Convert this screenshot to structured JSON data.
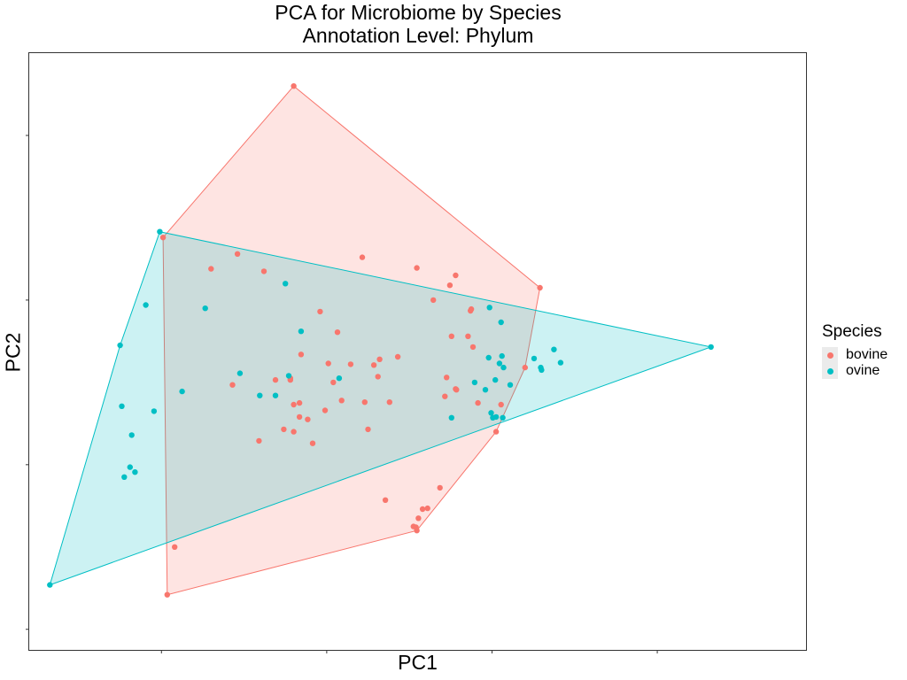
{
  "chart_data": {
    "type": "scatter",
    "title": "PCA for Microbiome by Species",
    "subtitle": "Annotation Level: Phylum",
    "xlabel": "PC1",
    "ylabel": "PC2",
    "xlim": [
      -3.6,
      5.8
    ],
    "ylim": [
      -3.25,
      4.0
    ],
    "grid": false,
    "legend_position": "right",
    "legend_title": "Species",
    "hulls": true,
    "series": [
      {
        "name": "bovine",
        "color": "#F8766D",
        "points": [
          [
            -0.4,
            3.6
          ],
          [
            -1.98,
            1.76
          ],
          [
            -1.08,
            1.56
          ],
          [
            -1.4,
            1.38
          ],
          [
            -0.76,
            1.35
          ],
          [
            0.43,
            1.52
          ],
          [
            1.09,
            1.39
          ],
          [
            1.56,
            1.3
          ],
          [
            1.49,
            1.18
          ],
          [
            2.58,
            1.15
          ],
          [
            1.29,
            1.0
          ],
          [
            1.75,
            0.89
          ],
          [
            1.74,
            0.87
          ],
          [
            -0.08,
            0.86
          ],
          [
            0.13,
            0.61
          ],
          [
            1.51,
            0.56
          ],
          [
            1.77,
            0.43
          ],
          [
            1.71,
            0.56
          ],
          [
            0.64,
            0.28
          ],
          [
            0.86,
            0.31
          ],
          [
            0.29,
            0.22
          ],
          [
            -0.31,
            0.34
          ],
          [
            0.02,
            0.23
          ],
          [
            0.57,
            0.21
          ],
          [
            -0.62,
            0.03
          ],
          [
            -1.14,
            -0.03
          ],
          [
            -0.44,
            0.05
          ],
          [
            -0.44,
            0.03
          ],
          [
            0.08,
            0.0
          ],
          [
            0.62,
            0.07
          ],
          [
            1.45,
            0.06
          ],
          [
            1.56,
            -0.08
          ],
          [
            1.57,
            -0.09
          ],
          [
            2.4,
            0.18
          ],
          [
            1.43,
            -0.17
          ],
          [
            0.18,
            -0.22
          ],
          [
            0.46,
            -0.24
          ],
          [
            0.76,
            -0.24
          ],
          [
            -0.33,
            -0.25
          ],
          [
            -0.4,
            -0.27
          ],
          [
            -0.33,
            -0.42
          ],
          [
            -0.02,
            -0.34
          ],
          [
            -0.23,
            -0.45
          ],
          [
            -0.52,
            -0.57
          ],
          [
            -0.4,
            -0.6
          ],
          [
            0.5,
            -0.57
          ],
          [
            1.83,
            -0.25
          ],
          [
            2.11,
            -0.27
          ],
          [
            2.05,
            -0.6
          ],
          [
            -0.17,
            -0.74
          ],
          [
            -0.82,
            -0.71
          ],
          [
            1.37,
            -1.28
          ],
          [
            0.71,
            -1.43
          ],
          [
            1.22,
            -1.53
          ],
          [
            1.16,
            -1.54
          ],
          [
            1.11,
            -1.65
          ],
          [
            1.05,
            -1.75
          ],
          [
            1.09,
            -1.8
          ],
          [
            1.08,
            -1.76
          ],
          [
            -1.84,
            -2.0
          ],
          [
            -1.93,
            -2.58
          ]
        ]
      },
      {
        "name": "ovine",
        "color": "#00BFC4",
        "points": [
          [
            -2.02,
            1.83
          ],
          [
            -0.5,
            1.2
          ],
          [
            -2.19,
            0.94
          ],
          [
            -1.47,
            0.9
          ],
          [
            1.97,
            0.91
          ],
          [
            2.11,
            0.73
          ],
          [
            -0.31,
            0.62
          ],
          [
            -2.5,
            0.45
          ],
          [
            0.15,
            0.05
          ],
          [
            -1.05,
            0.11
          ],
          [
            -0.46,
            0.08
          ],
          [
            2.12,
            0.32
          ],
          [
            2.51,
            0.29
          ],
          [
            1.96,
            0.3
          ],
          [
            2.14,
            0.18
          ],
          [
            2.59,
            0.18
          ],
          [
            2.83,
            0.24
          ],
          [
            2.09,
            0.23
          ],
          [
            1.79,
            0.0
          ],
          [
            1.92,
            -0.09
          ],
          [
            -1.75,
            -0.11
          ],
          [
            -0.62,
            -0.16
          ],
          [
            -0.81,
            -0.16
          ],
          [
            2.04,
            0.03
          ],
          [
            2.22,
            -0.03
          ],
          [
            2.75,
            0.4
          ],
          [
            2.6,
            0.15
          ],
          [
            -2.48,
            -0.29
          ],
          [
            -2.09,
            -0.35
          ],
          [
            1.99,
            -0.37
          ],
          [
            2.05,
            -0.42
          ],
          [
            2.13,
            -0.43
          ],
          [
            2.01,
            -0.43
          ],
          [
            1.51,
            -0.43
          ],
          [
            -2.36,
            -0.64
          ],
          [
            -2.38,
            -1.03
          ],
          [
            -2.32,
            -1.09
          ],
          [
            -2.45,
            -1.15
          ],
          [
            -3.35,
            -2.46
          ],
          [
            4.65,
            0.43
          ]
        ]
      }
    ]
  }
}
